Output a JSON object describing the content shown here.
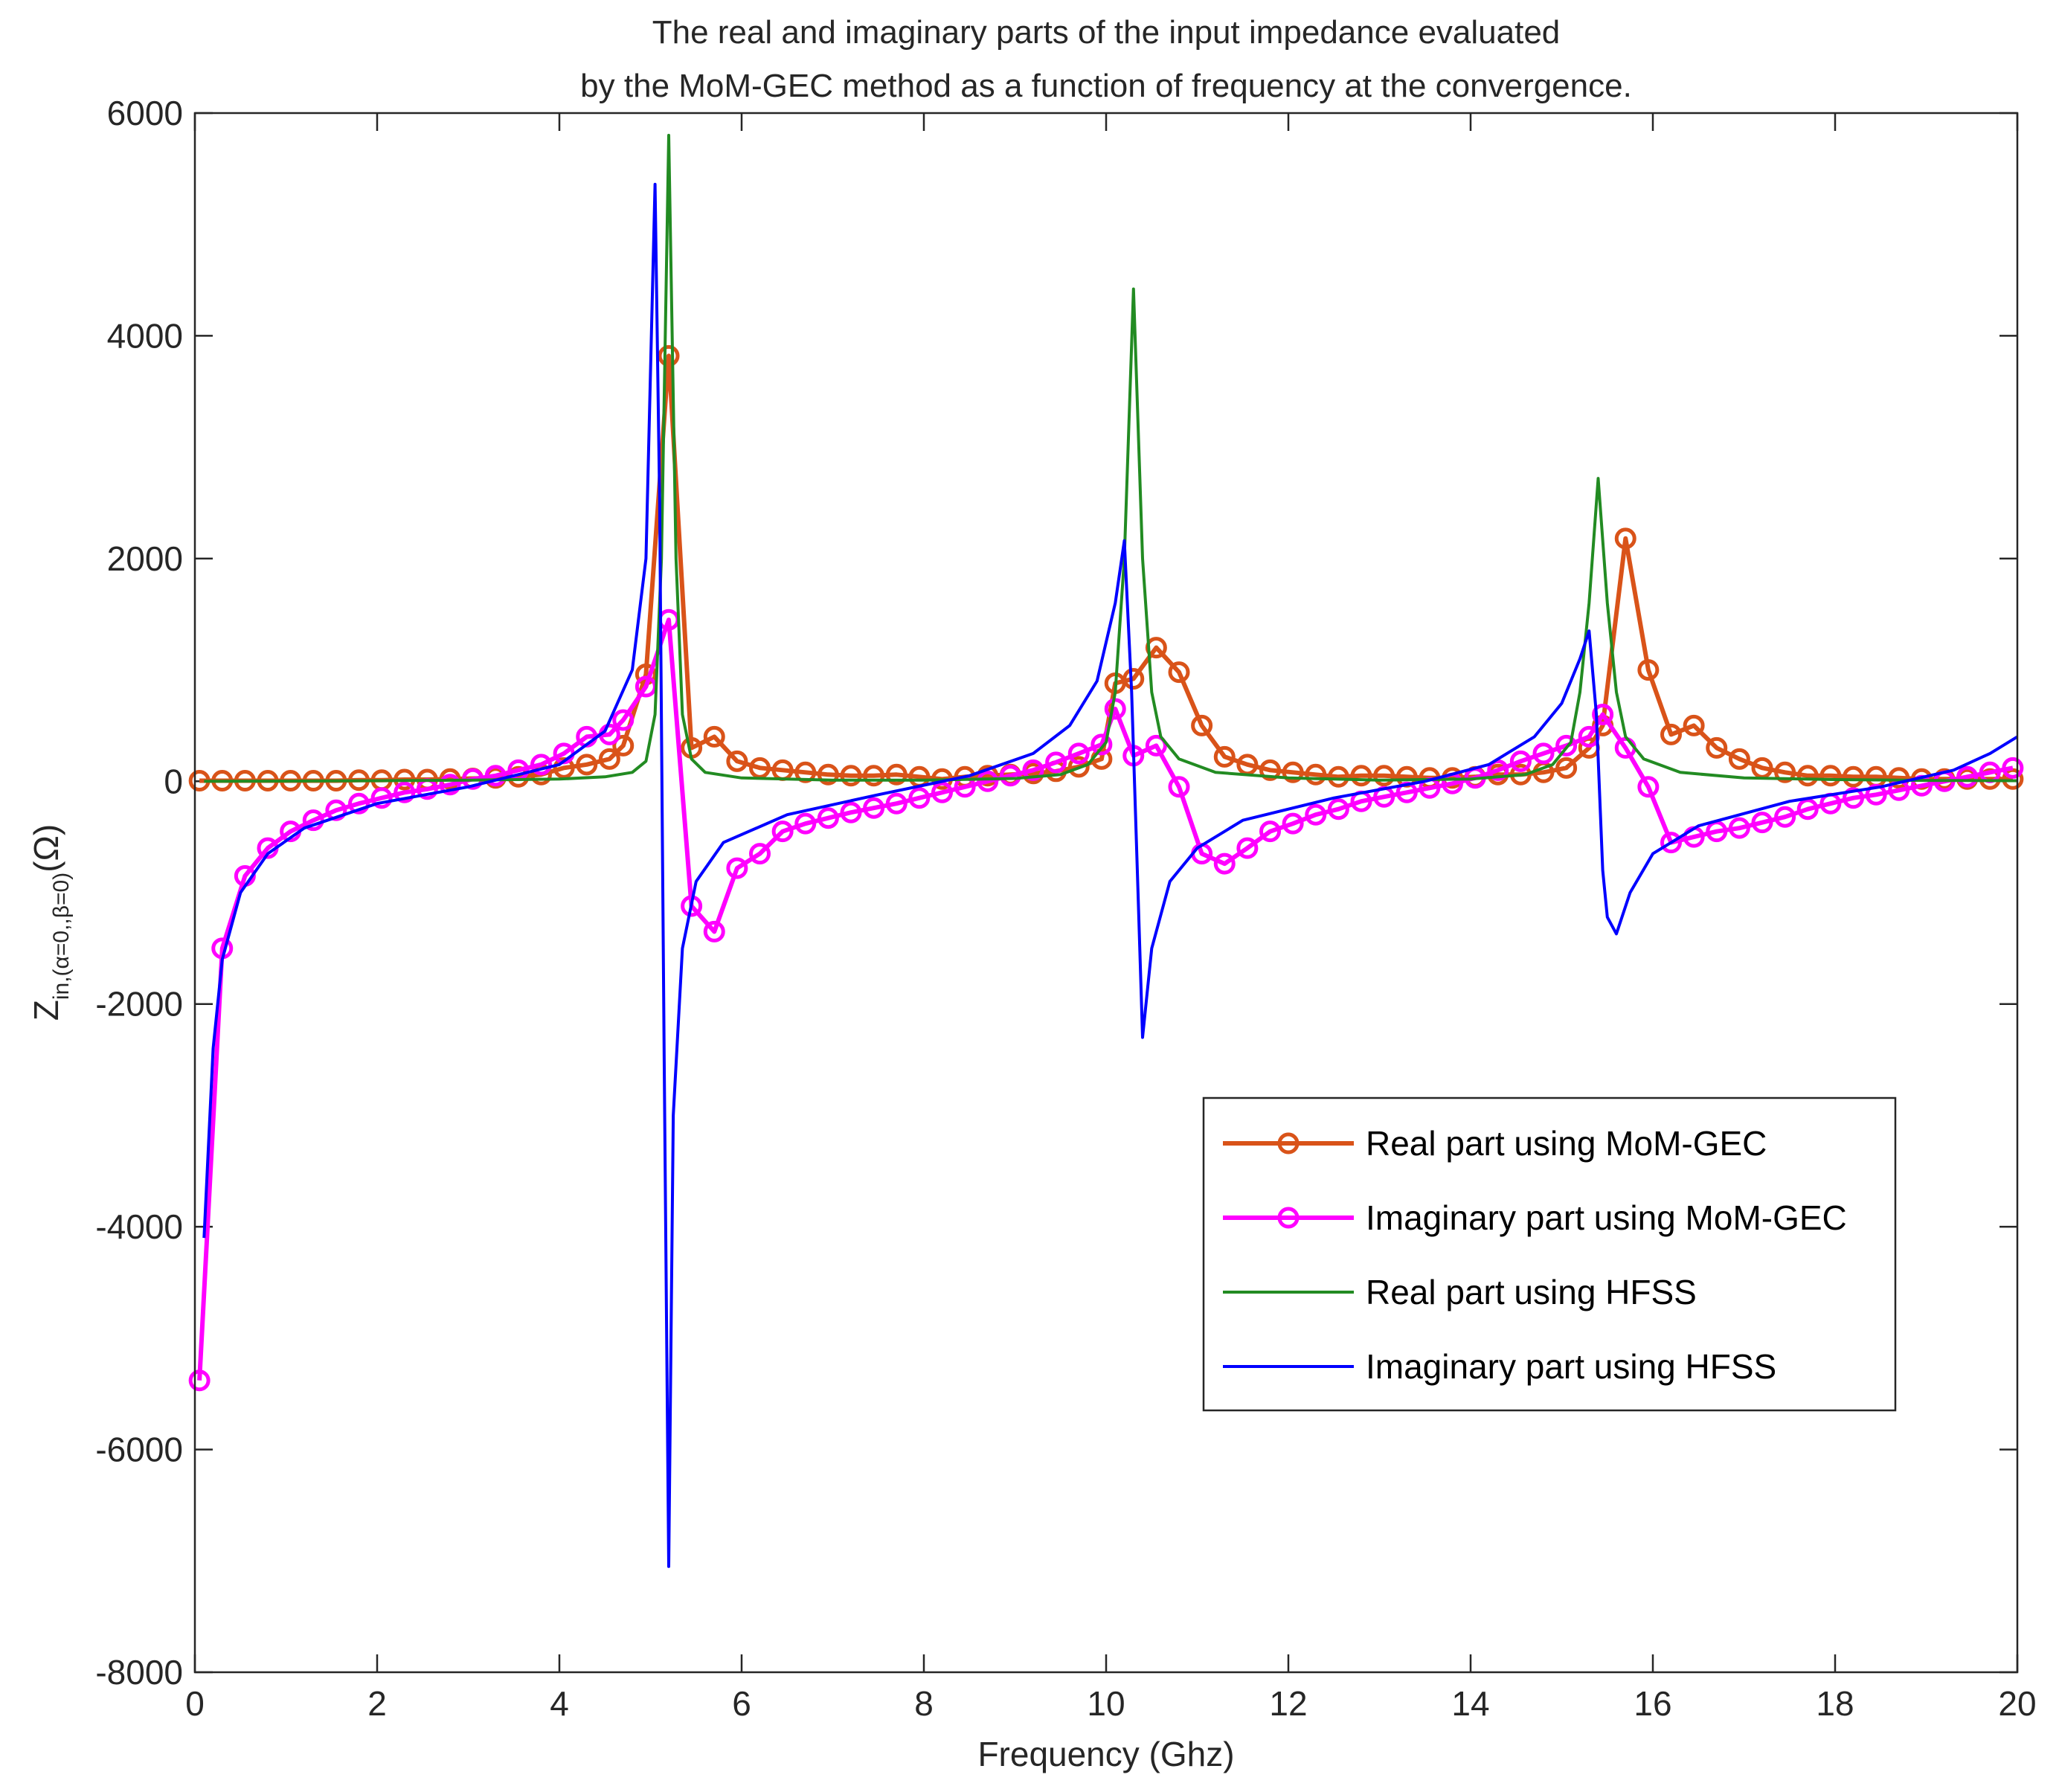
{
  "chart_data": {
    "type": "line",
    "title": [
      "The real and imaginary parts of the input impedance evaluated",
      "by the MoM-GEC method as a function of frequency at the convergence."
    ],
    "xlabel": "Frequency (Ghz)",
    "ylabel": {
      "main": "Z",
      "subscript": "in,(α=0,,β=0)",
      "unit": "(Ω)"
    },
    "xlim": [
      0,
      20
    ],
    "ylim": [
      -8000,
      6000
    ],
    "xticks": [
      0,
      2,
      4,
      6,
      8,
      10,
      12,
      14,
      16,
      18,
      20
    ],
    "yticks": [
      -8000,
      -6000,
      -4000,
      -2000,
      0,
      2000,
      4000,
      6000
    ],
    "legend": {
      "placement": "center-right",
      "entries": [
        "Real part using MoM-GEC",
        "Imaginary part using MoM-GEC",
        "Real part using HFSS",
        "Imaginary part using HFSS"
      ]
    },
    "series": [
      {
        "name": "Real part using MoM-GEC",
        "color": "#d95319",
        "marker": "circle",
        "x": [
          0.05,
          0.3,
          0.55,
          0.8,
          1.05,
          1.3,
          1.55,
          1.8,
          2.05,
          2.3,
          2.55,
          2.8,
          3.05,
          3.3,
          3.55,
          3.8,
          4.05,
          4.3,
          4.55,
          4.7,
          4.95,
          5.2,
          5.45,
          5.7,
          5.95,
          6.2,
          6.45,
          6.7,
          6.95,
          7.2,
          7.45,
          7.7,
          7.95,
          8.2,
          8.45,
          8.7,
          8.95,
          9.2,
          9.45,
          9.7,
          9.95,
          10.1,
          10.3,
          10.55,
          10.8,
          11.05,
          11.3,
          11.55,
          11.8,
          12.05,
          12.3,
          12.55,
          12.8,
          13.05,
          13.3,
          13.55,
          13.8,
          14.05,
          14.3,
          14.55,
          14.8,
          15.05,
          15.3,
          15.45,
          15.7,
          15.95,
          16.2,
          16.45,
          16.7,
          16.95,
          17.2,
          17.45,
          17.7,
          17.95,
          18.2,
          18.45,
          18.7,
          18.95,
          19.2,
          19.45,
          19.7,
          19.95
        ],
        "y": [
          5,
          5,
          5,
          5,
          5,
          5,
          5,
          10,
          10,
          15,
          15,
          20,
          25,
          30,
          40,
          60,
          120,
          150,
          200,
          320,
          960,
          3820,
          300,
          400,
          180,
          120,
          100,
          80,
          60,
          50,
          50,
          60,
          40,
          20,
          40,
          50,
          60,
          70,
          90,
          130,
          200,
          880,
          920,
          1200,
          980,
          500,
          220,
          150,
          100,
          80,
          60,
          40,
          50,
          50,
          40,
          30,
          30,
          40,
          60,
          60,
          80,
          120,
          300,
          500,
          2180,
          1000,
          420,
          500,
          300,
          200,
          120,
          80,
          50,
          50,
          40,
          40,
          30,
          20,
          20,
          20,
          20,
          20
        ]
      },
      {
        "name": "Imaginary part using MoM-GEC",
        "color": "#ff00ff",
        "marker": "circle",
        "x": [
          0.05,
          0.3,
          0.55,
          0.8,
          1.05,
          1.3,
          1.55,
          1.8,
          2.05,
          2.3,
          2.55,
          2.8,
          3.05,
          3.3,
          3.55,
          3.8,
          4.05,
          4.3,
          4.55,
          4.7,
          4.95,
          5.2,
          5.45,
          5.7,
          5.95,
          6.2,
          6.45,
          6.7,
          6.95,
          7.2,
          7.45,
          7.7,
          7.95,
          8.2,
          8.45,
          8.7,
          8.95,
          9.2,
          9.45,
          9.7,
          9.95,
          10.1,
          10.3,
          10.55,
          10.8,
          11.05,
          11.3,
          11.55,
          11.8,
          12.05,
          12.3,
          12.55,
          12.8,
          13.05,
          13.3,
          13.55,
          13.8,
          14.05,
          14.3,
          14.55,
          14.8,
          15.05,
          15.3,
          15.45,
          15.7,
          15.95,
          16.2,
          16.45,
          16.7,
          16.95,
          17.2,
          17.45,
          17.7,
          17.95,
          18.2,
          18.45,
          18.7,
          18.95,
          19.2,
          19.45,
          19.7,
          19.95
        ],
        "y": [
          -5380,
          -1500,
          -850,
          -600,
          -450,
          -350,
          -260,
          -200,
          -150,
          -100,
          -70,
          -30,
          20,
          50,
          100,
          150,
          250,
          400,
          420,
          550,
          850,
          1450,
          -1120,
          -1350,
          -780,
          -650,
          -450,
          -380,
          -330,
          -280,
          -240,
          -200,
          -150,
          -100,
          -50,
          0,
          50,
          100,
          170,
          250,
          330,
          650,
          230,
          320,
          -50,
          -650,
          -740,
          -600,
          -450,
          -380,
          -300,
          -250,
          -180,
          -140,
          -100,
          -60,
          -20,
          30,
          100,
          180,
          250,
          320,
          400,
          600,
          300,
          -50,
          -550,
          -500,
          -450,
          -420,
          -370,
          -320,
          -250,
          -200,
          -150,
          -120,
          -80,
          -40,
          0,
          40,
          80,
          120
        ]
      },
      {
        "name": "Real part using HFSS",
        "color": "#228b22",
        "marker": "none",
        "x": [
          0.1,
          1,
          2,
          3,
          4,
          4.5,
          4.8,
          4.95,
          5.05,
          5.12,
          5.2,
          5.28,
          5.35,
          5.45,
          5.6,
          6,
          7,
          8,
          9,
          9.5,
          9.8,
          10,
          10.1,
          10.2,
          10.3,
          10.4,
          10.5,
          10.6,
          10.8,
          11.2,
          12,
          13,
          14,
          14.6,
          14.9,
          15.1,
          15.2,
          15.3,
          15.4,
          15.5,
          15.6,
          15.7,
          15.9,
          16.3,
          17,
          18,
          19,
          20
        ],
        "y": [
          0,
          2,
          5,
          10,
          20,
          40,
          80,
          180,
          600,
          2000,
          5800,
          2000,
          600,
          200,
          80,
          30,
          10,
          10,
          25,
          60,
          150,
          350,
          800,
          2000,
          4420,
          2000,
          800,
          400,
          200,
          80,
          30,
          10,
          20,
          60,
          150,
          350,
          800,
          1600,
          2720,
          1600,
          800,
          400,
          200,
          80,
          30,
          15,
          8,
          5
        ]
      },
      {
        "name": "Imaginary part using HFSS",
        "color": "#0000ff",
        "marker": "none",
        "x": [
          0.1,
          0.2,
          0.3,
          0.5,
          0.8,
          1.2,
          2,
          3,
          4,
          4.5,
          4.8,
          4.95,
          5.05,
          5.1,
          5.15,
          5.2,
          5.25,
          5.35,
          5.5,
          5.8,
          6.5,
          7.5,
          8.5,
          9.2,
          9.6,
          9.9,
          10.1,
          10.2,
          10.28,
          10.35,
          10.4,
          10.5,
          10.7,
          11,
          11.5,
          12.5,
          13.5,
          14.2,
          14.7,
          15,
          15.2,
          15.3,
          15.38,
          15.45,
          15.5,
          15.6,
          15.75,
          16,
          16.5,
          17.5,
          18.5,
          19.3,
          19.7,
          20
        ],
        "y": [
          -4100,
          -2400,
          -1600,
          -1000,
          -650,
          -420,
          -200,
          -50,
          150,
          450,
          1000,
          2000,
          5360,
          2500,
          -2500,
          -7050,
          -3000,
          -1500,
          -900,
          -550,
          -300,
          -120,
          50,
          250,
          500,
          900,
          1600,
          2160,
          800,
          -1000,
          -2300,
          -1500,
          -900,
          -600,
          -350,
          -150,
          0,
          150,
          400,
          700,
          1100,
          1350,
          600,
          -800,
          -1220,
          -1370,
          -1000,
          -650,
          -400,
          -180,
          -50,
          100,
          250,
          400
        ]
      }
    ]
  }
}
